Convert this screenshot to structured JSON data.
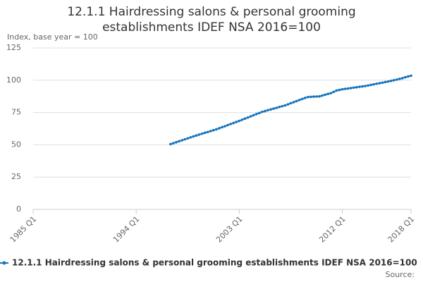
{
  "chart_data": {
    "type": "line",
    "title": "12.1.1 Hairdressing salons & personal grooming establishments IDEF NSA 2016=100",
    "y_label": "Index, base year = 100",
    "source": "Source:",
    "categories": [
      "1985 Q1",
      null,
      null,
      null,
      null,
      null,
      null,
      null,
      null,
      null,
      null,
      null,
      null,
      null,
      null,
      null,
      null,
      null,
      null,
      null,
      null,
      null,
      null,
      null,
      null,
      null,
      null,
      null,
      null,
      null,
      null,
      null,
      null,
      null,
      null,
      null,
      "1994 Q1",
      null,
      null,
      null,
      null,
      null,
      null,
      null,
      null,
      null,
      null,
      null,
      null,
      null,
      null,
      null,
      null,
      null,
      null,
      null,
      null,
      null,
      null,
      null,
      null,
      null,
      null,
      null,
      null,
      null,
      null,
      null,
      null,
      null,
      null,
      null,
      "2003 Q1",
      null,
      null,
      null,
      null,
      null,
      null,
      null,
      null,
      null,
      null,
      null,
      null,
      null,
      null,
      null,
      null,
      null,
      null,
      null,
      null,
      null,
      null,
      null,
      null,
      null,
      null,
      null,
      null,
      null,
      null,
      null,
      null,
      null,
      null,
      null,
      "2012 Q1",
      null,
      null,
      null,
      null,
      null,
      null,
      null,
      null,
      null,
      null,
      null,
      null,
      null,
      null,
      null,
      null,
      null,
      null,
      null,
      null,
      null,
      null,
      null,
      "2018 Q1"
    ],
    "series": [
      {
        "name": "12.1.1 Hairdressing salons & personal grooming establishments IDEF NSA 2016=100",
        "color": "#1a75bc",
        "values": [
          null,
          null,
          null,
          null,
          null,
          null,
          null,
          null,
          null,
          null,
          null,
          null,
          null,
          null,
          null,
          null,
          null,
          null,
          null,
          null,
          null,
          null,
          null,
          null,
          null,
          null,
          null,
          null,
          null,
          null,
          null,
          null,
          null,
          null,
          null,
          null,
          null,
          null,
          null,
          null,
          null,
          null,
          null,
          null,
          null,
          null,
          null,
          null,
          50.5,
          51.25,
          52,
          52.75,
          53.5,
          54.25,
          55,
          55.75,
          56.5,
          57.2,
          57.9,
          58.6,
          59.3,
          59.9,
          60.6,
          61.3,
          62,
          62.8,
          63.6,
          64.4,
          65.3,
          66.1,
          66.9,
          67.7,
          68.5,
          69.4,
          70.3,
          71.1,
          72,
          72.9,
          73.8,
          74.6,
          75.5,
          76.1,
          76.8,
          77.4,
          78,
          78.6,
          79.3,
          79.9,
          80.5,
          81.3,
          82.2,
          83,
          83.8,
          84.7,
          85.5,
          86.3,
          87,
          87.1,
          87.3,
          87.4,
          87.5,
          88.1,
          88.8,
          89.4,
          90,
          91,
          92,
          92.5,
          93,
          93.3,
          93.6,
          93.9,
          94.3,
          94.6,
          94.9,
          95.2,
          95.5,
          95.9,
          96.4,
          96.8,
          97.3,
          97.7,
          98.1,
          98.6,
          99,
          99.5,
          100,
          100.5,
          101,
          101.6,
          102.3,
          102.9,
          103.5
        ]
      }
    ],
    "ylim": [
      0,
      125
    ],
    "yticks": [
      0,
      25,
      50,
      75,
      100,
      125
    ],
    "grid": true
  }
}
